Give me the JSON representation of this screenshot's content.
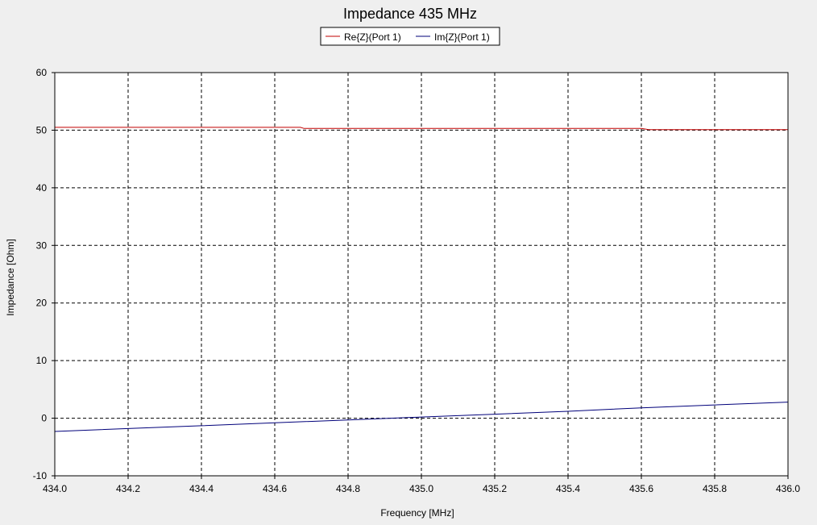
{
  "chart_data": {
    "type": "line",
    "title": "Impedance 435 MHz",
    "xlabel": "Frequency [MHz]",
    "ylabel": "Impedance [Ohm]",
    "xlim": [
      434.0,
      436.0
    ],
    "ylim": [
      -10,
      60
    ],
    "x_ticks": [
      "434.0",
      "434.2",
      "434.4",
      "434.6",
      "434.8",
      "435.0",
      "435.2",
      "435.4",
      "435.6",
      "435.8",
      "436.0"
    ],
    "y_ticks": [
      "60",
      "50",
      "40",
      "30",
      "20",
      "10",
      "0",
      "-10"
    ],
    "grid": true,
    "legend_position": "top-center",
    "series": [
      {
        "name": "Re{Z}(Port 1)",
        "color": "#c00000",
        "x": [
          434.0,
          434.2,
          434.4,
          434.6,
          434.67,
          434.68,
          434.8,
          435.0,
          435.2,
          435.4,
          435.6,
          435.62,
          435.8,
          436.0
        ],
        "y": [
          50.5,
          50.5,
          50.5,
          50.5,
          50.5,
          50.3,
          50.3,
          50.3,
          50.3,
          50.3,
          50.3,
          50.1,
          50.1,
          50.1
        ]
      },
      {
        "name": "Im{Z}(Port 1)",
        "color": "#00007a",
        "x": [
          434.0,
          434.2,
          434.4,
          434.6,
          434.8,
          435.0,
          435.2,
          435.4,
          435.6,
          435.8,
          436.0
        ],
        "y": [
          -2.3,
          -1.8,
          -1.3,
          -0.8,
          -0.3,
          0.2,
          0.7,
          1.2,
          1.8,
          2.3,
          2.8
        ]
      }
    ]
  }
}
